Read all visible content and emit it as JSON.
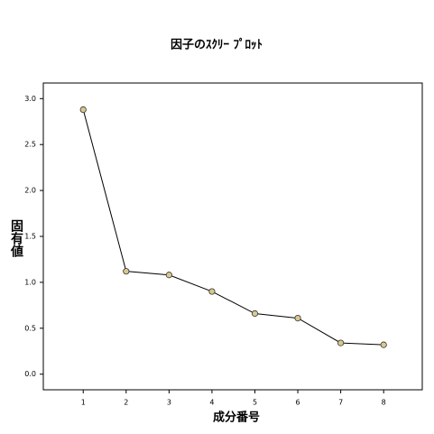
{
  "chart_data": {
    "type": "line",
    "title": "因子のｽｸﾘｰ ﾌﾟﾛｯﾄ",
    "x_label": "成分番号",
    "y_label": "固有値",
    "x": [
      1,
      2,
      3,
      4,
      5,
      6,
      7,
      8
    ],
    "values": [
      2.88,
      1.12,
      1.08,
      0.9,
      0.66,
      0.61,
      0.34,
      0.32
    ],
    "color": "#000000",
    "marker_color": "#d8c890",
    "xlim": [
      0.07,
      8.9
    ],
    "ylim": [
      -0.17,
      3.17
    ],
    "xticks": [
      1,
      2,
      3,
      4,
      5,
      6,
      7,
      8
    ],
    "yticks": [
      {
        "value": 0,
        "label": "0.0"
      },
      0.5,
      {
        "value": 1,
        "label": "1.0"
      },
      1.5,
      {
        "value": 2,
        "label": "2.0"
      },
      2.5,
      {
        "value": 3,
        "label": "3.0"
      }
    ]
  }
}
